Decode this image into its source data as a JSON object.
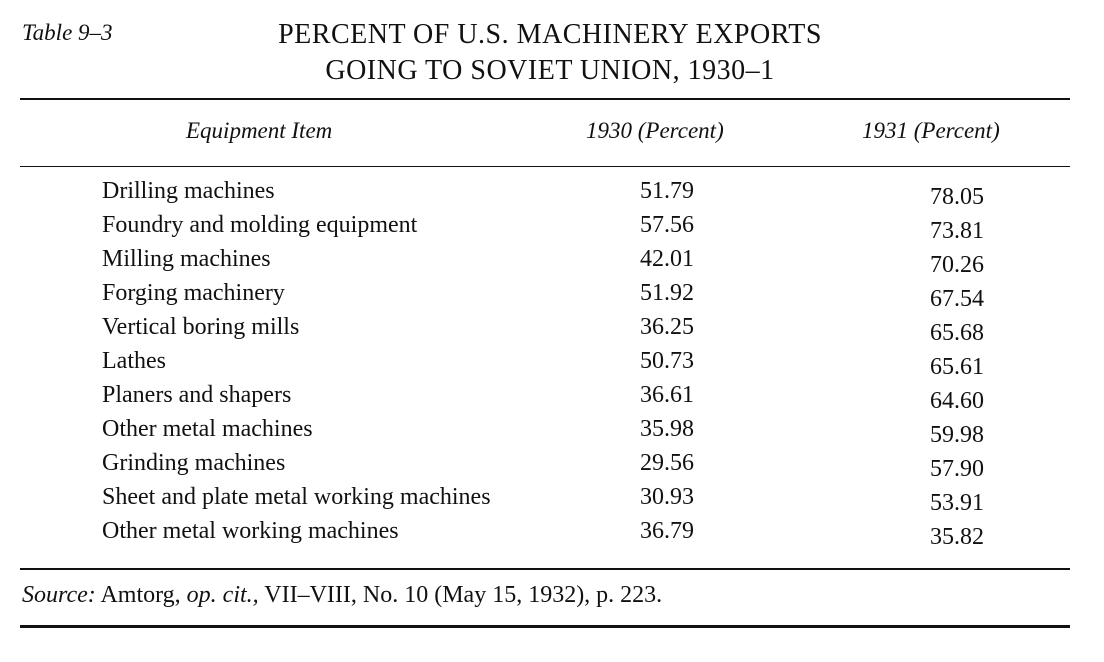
{
  "table_label": "Table 9–3",
  "title": {
    "line1": "PERCENT OF U.S. MACHINERY EXPORTS",
    "line2": "GOING TO SOVIET UNION, 1930–1"
  },
  "columns": {
    "item": "Equipment Item",
    "y1930": "1930 (Percent)",
    "y1931": "1931 (Percent)"
  },
  "rows": [
    {
      "item": "Drilling machines",
      "y1930": "51.79",
      "y1931": "78.05"
    },
    {
      "item": "Foundry and molding equipment",
      "y1930": "57.56",
      "y1931": "73.81"
    },
    {
      "item": "Milling machines",
      "y1930": "42.01",
      "y1931": "70.26"
    },
    {
      "item": "Forging machinery",
      "y1930": "51.92",
      "y1931": "67.54"
    },
    {
      "item": "Vertical boring mills",
      "y1930": "36.25",
      "y1931": "65.68"
    },
    {
      "item": "Lathes",
      "y1930": "50.73",
      "y1931": "65.61"
    },
    {
      "item": "Planers and shapers",
      "y1930": "36.61",
      "y1931": "64.60"
    },
    {
      "item": "Other metal machines",
      "y1930": "35.98",
      "y1931": "59.98"
    },
    {
      "item": "Grinding machines",
      "y1930": "29.56",
      "y1931": "57.90"
    },
    {
      "item": "Sheet and plate metal working machines",
      "y1930": "30.93",
      "y1931": "53.91"
    },
    {
      "item": "Other metal working machines",
      "y1930": "36.79",
      "y1931": "35.82"
    }
  ],
  "source": {
    "label": "Source:",
    "org": "Amtorg,",
    "op_cit": "op. cit.,",
    "citation": "VII–VIII, No. 10 (May 15, 1932), p. 223."
  }
}
